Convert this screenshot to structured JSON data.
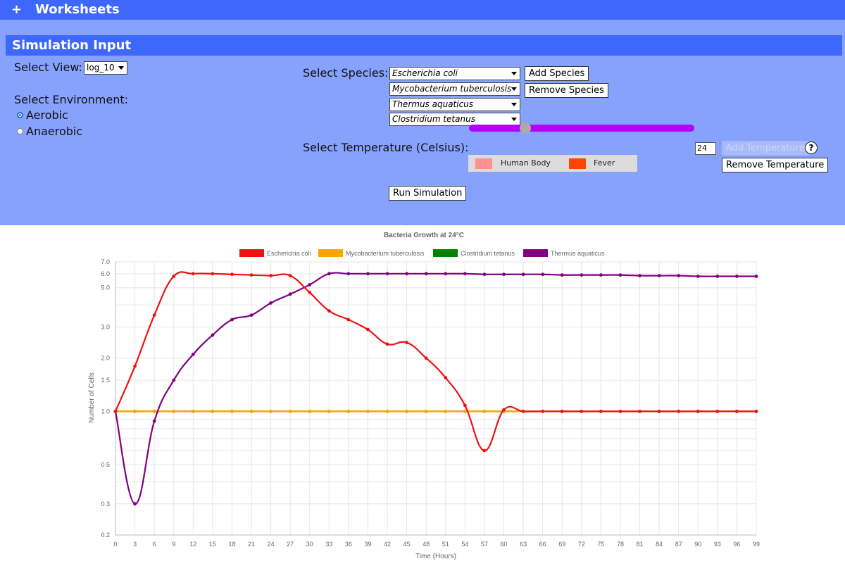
{
  "topbar": {
    "plus": "+",
    "title": "Worksheets"
  },
  "panel": {
    "title": "Simulation Input"
  },
  "view": {
    "label": "Select View:",
    "value": "log_10"
  },
  "environment": {
    "label": "Select Environment:",
    "options": [
      {
        "label": "Aerobic",
        "selected": true
      },
      {
        "label": "Anaerobic",
        "selected": false
      }
    ]
  },
  "species": {
    "label": "Select Species:",
    "selects": [
      "Escherichia coli",
      "Mycobacterium tuberculosis",
      "Thermus aquaticus",
      "Clostridium tetanus"
    ],
    "add_label": "Add Species",
    "remove_label": "Remove Species"
  },
  "temperature": {
    "label": "Select Temperature (Celsius):",
    "value": "24",
    "slider_fraction": 0.25,
    "add_label": "Add Temperature",
    "remove_label": "Remove Temperature",
    "help": "?",
    "presets": [
      {
        "label": "Human Body",
        "color": "#ff9090"
      },
      {
        "label": "Fever",
        "color": "#ff4500"
      }
    ]
  },
  "run_label": "Run Simulation",
  "chart_data": {
    "type": "line",
    "title": "Bacteria Growth at 24°C",
    "xlabel": "Time (Hours)",
    "ylabel": "Number of Cells",
    "y_scale": "log",
    "ylim": [
      0.2,
      7.0
    ],
    "xlim": [
      0,
      99
    ],
    "grid": true,
    "legend_position": "top",
    "x_ticks": [
      0,
      3,
      6,
      9,
      12,
      15,
      18,
      21,
      24,
      27,
      30,
      33,
      36,
      39,
      42,
      45,
      48,
      51,
      54,
      57,
      60,
      63,
      66,
      69,
      72,
      75,
      78,
      81,
      84,
      87,
      90,
      93,
      96,
      99
    ],
    "y_ticks": [
      "0.2",
      "0.3",
      "0.5",
      "1.0",
      "1.5",
      "2.0",
      "3.0",
      "5.0",
      "6.0",
      "7.0"
    ],
    "y_tick_values": [
      0.2,
      0.3,
      0.5,
      1.0,
      1.5,
      2.0,
      3.0,
      5.0,
      6.0,
      7.0
    ],
    "series": [
      {
        "name": "Escherichia coli",
        "color": "#ee1111",
        "values": [
          1.0,
          1.8,
          3.5,
          5.8,
          6.0,
          6.0,
          5.95,
          5.9,
          5.85,
          5.85,
          4.7,
          3.7,
          3.3,
          2.9,
          2.4,
          2.45,
          2.0,
          1.55,
          1.08,
          0.6,
          1.02,
          1.0,
          1.0,
          1.0,
          1.0,
          1.0,
          1.0,
          1.0,
          1.0,
          1.0,
          1.0,
          1.0,
          1.0,
          1.0
        ]
      },
      {
        "name": "Mycobacterium tuberculosis",
        "color": "#ffa500",
        "values": [
          1.0,
          1.0,
          1.0,
          1.0,
          1.0,
          1.0,
          1.0,
          1.0,
          1.0,
          1.0,
          1.0,
          1.0,
          1.0,
          1.0,
          1.0,
          1.0,
          1.0,
          1.0,
          1.0,
          1.0,
          1.0,
          1.0,
          1.0,
          1.0,
          1.0,
          1.0,
          1.0,
          1.0,
          1.0,
          1.0,
          1.0,
          1.0,
          1.0,
          1.0
        ]
      },
      {
        "name": "Clostridium tetanus",
        "color": "#008000",
        "values": [
          1.0,
          1.0,
          1.0,
          1.0,
          1.0,
          1.0,
          1.0,
          1.0,
          1.0,
          1.0,
          1.0,
          1.0,
          1.0,
          1.0,
          1.0,
          1.0,
          1.0,
          1.0,
          1.0,
          1.0,
          1.0,
          1.0,
          1.0,
          1.0,
          1.0,
          1.0,
          1.0,
          1.0,
          1.0,
          1.0,
          1.0,
          1.0,
          1.0,
          1.0
        ]
      },
      {
        "name": "Thermus aquaticus",
        "color": "#800080",
        "values": [
          1.0,
          0.3,
          0.88,
          1.5,
          2.1,
          2.7,
          3.3,
          3.5,
          4.1,
          4.6,
          5.2,
          6.0,
          6.0,
          6.0,
          6.0,
          6.0,
          6.0,
          6.0,
          6.0,
          5.95,
          5.95,
          5.95,
          5.95,
          5.9,
          5.9,
          5.9,
          5.9,
          5.85,
          5.85,
          5.85,
          5.8,
          5.8,
          5.8,
          5.8
        ]
      }
    ]
  }
}
